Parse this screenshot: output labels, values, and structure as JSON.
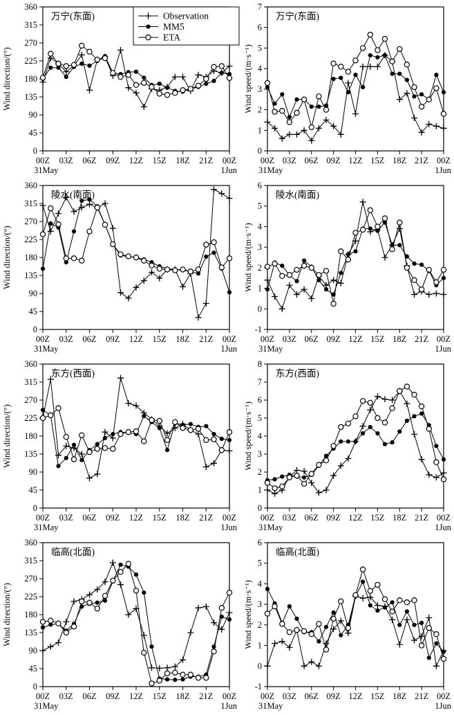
{
  "figure": {
    "legend": {
      "items": [
        {
          "label": "Observation",
          "marker": "plus"
        },
        {
          "label": "MM5",
          "marker": "filled-circle"
        },
        {
          "label": "ETA",
          "marker": "open-circle"
        }
      ]
    },
    "x_axis": {
      "tick_labels": [
        "00Z",
        "03Z",
        "06Z",
        "09Z",
        "12Z",
        "15Z",
        "18Z",
        "21Z",
        "00Z"
      ],
      "start_date_label": "31May",
      "end_date_label": "1Jun"
    },
    "colors": {
      "line": "#000000",
      "background": "#ffffff"
    }
  },
  "chart_data": [
    {
      "type": "line",
      "title": "万宁(东面)",
      "ylabel": "Wind direction/(°)",
      "ylim": [
        0,
        360
      ],
      "ytick_step": 45,
      "x_hours_range": [
        0,
        24
      ],
      "series": [
        {
          "name": "Observation",
          "marker": "plus",
          "values": [
            172,
            232,
            218,
            198,
            213,
            240,
            152,
            228,
            235,
            188,
            252,
            158,
            145,
            110,
            155,
            152,
            160,
            185,
            185,
            150,
            190,
            185,
            200,
            195,
            212
          ]
        },
        {
          "name": "MM5",
          "marker": "filled-circle",
          "values": [
            180,
            208,
            208,
            185,
            210,
            218,
            213,
            225,
            237,
            195,
            192,
            197,
            198,
            183,
            165,
            168,
            158,
            150,
            148,
            155,
            160,
            168,
            175,
            195,
            192
          ]
        },
        {
          "name": "ETA",
          "marker": "open-circle",
          "values": [
            183,
            243,
            218,
            212,
            215,
            263,
            248,
            228,
            232,
            195,
            185,
            190,
            165,
            170,
            160,
            143,
            140,
            145,
            152,
            155,
            163,
            180,
            210,
            212,
            182
          ]
        }
      ]
    },
    {
      "type": "line",
      "title": "万宁(东面)",
      "ylabel": "Wind speed/(m·s⁻¹)",
      "ylim": [
        0,
        7
      ],
      "ytick_step": 1,
      "x_hours_range": [
        0,
        24
      ],
      "series": [
        {
          "name": "Observation",
          "marker": "plus",
          "values": [
            1.4,
            1.1,
            0.6,
            0.8,
            0.8,
            1.0,
            0.5,
            1.1,
            1.5,
            1.2,
            0.8,
            3.3,
            1.8,
            4.1,
            4.1,
            4.1,
            4.65,
            4.35,
            2.5,
            2.8,
            1.6,
            0.9,
            1.3,
            1.2,
            1.1
          ]
        },
        {
          "name": "MM5",
          "marker": "filled-circle",
          "values": [
            3.1,
            2.3,
            2.75,
            1.65,
            2.5,
            2.5,
            2.15,
            2.15,
            2.2,
            3.5,
            3.55,
            2.85,
            3.7,
            3.1,
            4.65,
            4.55,
            4.65,
            3.75,
            3.75,
            3.45,
            2.65,
            2.75,
            2.5,
            3.7,
            2.85
          ]
        },
        {
          "name": "ETA",
          "marker": "open-circle",
          "values": [
            3.3,
            1.9,
            1.95,
            1.4,
            1.85,
            2.5,
            1.15,
            2.65,
            2.0,
            4.25,
            4.1,
            3.85,
            4.4,
            5.0,
            5.65,
            4.9,
            5.45,
            4.35,
            4.95,
            4.2,
            3.1,
            2.15,
            2.5,
            3.05,
            1.8
          ]
        }
      ]
    },
    {
      "type": "line",
      "title": "陵水(南面)",
      "ylabel": "Wind direction/(°)",
      "ylim": [
        0,
        360
      ],
      "ytick_step": 45,
      "x_hours_range": [
        0,
        24
      ],
      "series": [
        {
          "name": "Observation",
          "marker": "plus",
          "values": [
            310,
            245,
            290,
            330,
            295,
            305,
            313,
            305,
            315,
            253,
            92,
            78,
            105,
            122,
            143,
            128,
            150,
            150,
            107,
            140,
            30,
            65,
            350,
            340,
            328
          ]
        },
        {
          "name": "MM5",
          "marker": "filled-circle",
          "values": [
            152,
            265,
            255,
            168,
            245,
            322,
            325,
            308,
            262,
            213,
            185,
            182,
            180,
            175,
            168,
            158,
            152,
            150,
            148,
            145,
            140,
            182,
            192,
            152,
            93
          ]
        },
        {
          "name": "ETA",
          "marker": "open-circle",
          "values": [
            238,
            303,
            263,
            178,
            178,
            172,
            245,
            305,
            262,
            213,
            188,
            183,
            180,
            172,
            160,
            152,
            150,
            148,
            150,
            145,
            150,
            212,
            218,
            155,
            178
          ]
        }
      ]
    },
    {
      "type": "line",
      "title": "陵水(南面)",
      "ylabel": "Wind speed/(m·s⁻¹)",
      "ylim": [
        -1,
        6
      ],
      "ytick_step": 1,
      "x_hours_range": [
        0,
        24
      ],
      "series": [
        {
          "name": "Observation",
          "marker": "plus",
          "values": [
            1.4,
            0.6,
            0.0,
            1.15,
            0.7,
            0.95,
            0.5,
            1.6,
            1.15,
            1.4,
            1.25,
            2.65,
            3.3,
            5.2,
            3.75,
            3.85,
            2.5,
            3.1,
            3.9,
            2.1,
            0.7,
            0.85,
            0.7,
            0.75,
            0.7
          ]
        },
        {
          "name": "MM5",
          "marker": "filled-circle",
          "values": [
            0.95,
            2.25,
            2.1,
            1.65,
            1.35,
            2.35,
            2.05,
            1.4,
            0.95,
            0.7,
            1.75,
            2.65,
            2.8,
            3.9,
            3.9,
            3.8,
            4.2,
            3.1,
            3.1,
            2.55,
            2.2,
            2.15,
            1.85,
            1.15,
            1.5
          ]
        },
        {
          "name": "ETA",
          "marker": "open-circle",
          "values": [
            2.05,
            2.2,
            1.6,
            1.65,
            1.9,
            2.1,
            2.0,
            1.65,
            1.85,
            0.25,
            2.8,
            2.4,
            3.7,
            3.85,
            4.8,
            4.0,
            4.4,
            2.9,
            4.2,
            2.0,
            1.4,
            0.95,
            1.9,
            1.3,
            1.9
          ]
        }
      ]
    },
    {
      "type": "line",
      "title": "东方(西面)",
      "ylabel": "Wind direction/(°)",
      "ylim": [
        0,
        360
      ],
      "ytick_step": 45,
      "x_hours_range": [
        0,
        24
      ],
      "series": [
        {
          "name": "Observation",
          "marker": "plus",
          "values": [
            225,
            322,
            132,
            155,
            150,
            135,
            75,
            85,
            190,
            175,
            325,
            262,
            256,
            238,
            222,
            205,
            187,
            200,
            210,
            195,
            185,
            103,
            112,
            145,
            143
          ]
        },
        {
          "name": "MM5",
          "marker": "filled-circle",
          "values": [
            245,
            232,
            105,
            125,
            158,
            120,
            145,
            160,
            175,
            185,
            190,
            188,
            185,
            230,
            215,
            200,
            145,
            212,
            208,
            210,
            203,
            205,
            185,
            173,
            170
          ]
        },
        {
          "name": "ETA",
          "marker": "open-circle",
          "values": [
            225,
            232,
            250,
            178,
            122,
            182,
            140,
            148,
            150,
            148,
            185,
            190,
            192,
            167,
            220,
            218,
            170,
            215,
            200,
            195,
            198,
            170,
            172,
            145,
            190
          ]
        }
      ]
    },
    {
      "type": "line",
      "title": "东方(西面)",
      "ylabel": "Wind speed/(m·s⁻¹)",
      "ylim": [
        0,
        8
      ],
      "ytick_step": 1,
      "x_hours_range": [
        0,
        24
      ],
      "series": [
        {
          "name": "Observation",
          "marker": "plus",
          "values": [
            1.0,
            0.8,
            1.0,
            1.75,
            2.1,
            2.05,
            1.4,
            0.85,
            1.0,
            1.8,
            2.35,
            2.75,
            3.7,
            4.55,
            5.45,
            6.2,
            6.05,
            6.0,
            6.5,
            5.8,
            4.1,
            2.7,
            1.85,
            1.7,
            1.95
          ]
        },
        {
          "name": "MM5",
          "marker": "filled-circle",
          "values": [
            1.55,
            1.6,
            1.75,
            1.85,
            1.75,
            1.7,
            1.85,
            2.35,
            2.9,
            3.3,
            3.7,
            3.7,
            3.7,
            4.15,
            4.5,
            4.15,
            3.55,
            3.65,
            4.25,
            4.85,
            5.1,
            5.25,
            4.6,
            3.45,
            2.7
          ]
        },
        {
          "name": "ETA",
          "marker": "open-circle",
          "values": [
            1.4,
            1.1,
            1.2,
            1.7,
            1.8,
            1.35,
            1.9,
            2.4,
            2.65,
            3.45,
            4.5,
            4.7,
            5.1,
            5.95,
            5.85,
            5.0,
            4.75,
            5.55,
            6.5,
            6.75,
            6.3,
            5.65,
            4.4,
            2.55,
            1.6
          ]
        }
      ]
    },
    {
      "type": "line",
      "title": "临高(北面)",
      "ylabel": "Wind direction/(°)",
      "ylim": [
        0,
        360
      ],
      "ytick_step": 45,
      "x_hours_range": [
        0,
        24
      ],
      "series": [
        {
          "name": "Observation",
          "marker": "plus",
          "values": [
            90,
            100,
            110,
            162,
            213,
            218,
            230,
            243,
            262,
            310,
            255,
            180,
            195,
            128,
            47,
            46,
            47,
            50,
            67,
            135,
            197,
            200,
            160,
            143,
            185
          ]
        },
        {
          "name": "MM5",
          "marker": "filled-circle",
          "values": [
            148,
            155,
            157,
            140,
            157,
            200,
            207,
            210,
            215,
            263,
            305,
            300,
            280,
            235,
            100,
            20,
            18,
            17,
            18,
            25,
            25,
            30,
            100,
            175,
            168
          ]
        },
        {
          "name": "ETA",
          "marker": "open-circle",
          "values": [
            162,
            165,
            158,
            135,
            150,
            213,
            210,
            195,
            227,
            265,
            287,
            307,
            240,
            85,
            8,
            15,
            33,
            35,
            30,
            30,
            22,
            22,
            88,
            197,
            235
          ]
        }
      ]
    },
    {
      "type": "line",
      "title": "临高(北面)",
      "ylabel": "Wind speed/(m·s⁻¹)",
      "ylim": [
        -1,
        6
      ],
      "ytick_step": 1,
      "x_hours_range": [
        0,
        24
      ],
      "series": [
        {
          "name": "Observation",
          "marker": "plus",
          "values": [
            0.0,
            1.1,
            1.2,
            0.9,
            1.75,
            0.0,
            0.2,
            0.0,
            1.1,
            1.8,
            2.2,
            1.6,
            3.4,
            3.3,
            3.35,
            2.95,
            2.9,
            2.25,
            1.05,
            2.25,
            1.25,
            1.45,
            2.35,
            0.0,
            0.75
          ]
        },
        {
          "name": "MM5",
          "marker": "filled-circle",
          "values": [
            3.75,
            3.05,
            2.1,
            2.9,
            2.3,
            1.65,
            1.65,
            1.2,
            1.9,
            2.6,
            1.5,
            2.0,
            3.4,
            4.1,
            2.95,
            2.7,
            2.85,
            3.1,
            2.0,
            2.65,
            2.0,
            2.1,
            0.4,
            1.1,
            0.7
          ]
        },
        {
          "name": "ETA",
          "marker": "open-circle",
          "values": [
            2.55,
            2.9,
            2.05,
            1.65,
            1.75,
            1.7,
            1.55,
            2.05,
            0.8,
            2.3,
            3.15,
            1.85,
            3.45,
            4.7,
            3.65,
            3.95,
            3.25,
            2.65,
            3.2,
            3.1,
            3.2,
            1.0,
            1.85,
            1.55,
            0.35
          ]
        }
      ]
    }
  ]
}
